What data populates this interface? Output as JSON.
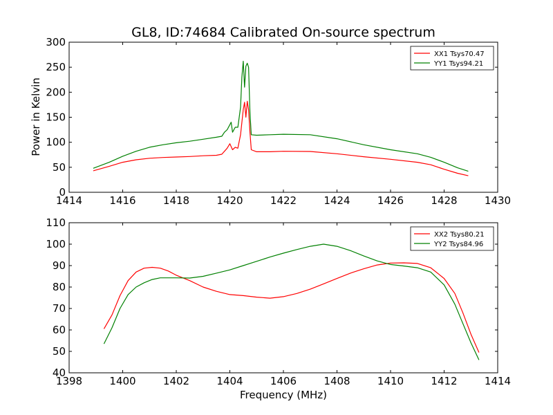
{
  "figure": {
    "title": "GL8, ID:74684 Calibrated On-source spectrum",
    "xlabel": "Frequency (MHz)",
    "ylabel": "Power in Kelvin"
  },
  "chart_data": [
    {
      "type": "line",
      "title": "GL8, ID:74684 Calibrated On-source spectrum",
      "xlabel": "",
      "ylabel": "Power in Kelvin",
      "xlim": [
        1414,
        1430
      ],
      "ylim": [
        0,
        300
      ],
      "xticks": [
        "1414",
        "1416",
        "1418",
        "1420",
        "1422",
        "1424",
        "1426",
        "1428",
        "1430"
      ],
      "yticks": [
        "0",
        "50",
        "100",
        "150",
        "200",
        "250",
        "300"
      ],
      "grid": false,
      "legend_position": "top-right",
      "series": [
        {
          "name": "XX1 Tsys70.47",
          "color": "#ff0000",
          "points": [
            [
              1414.9,
              43
            ],
            [
              1415.5,
              52
            ],
            [
              1416,
              60
            ],
            [
              1416.5,
              65
            ],
            [
              1417,
              68
            ],
            [
              1417.5,
              69.5
            ],
            [
              1418,
              70.5
            ],
            [
              1418.5,
              71.5
            ],
            [
              1419,
              73
            ],
            [
              1419.5,
              74
            ],
            [
              1419.7,
              76
            ],
            [
              1419.9,
              88
            ],
            [
              1420.0,
              97
            ],
            [
              1420.1,
              85
            ],
            [
              1420.2,
              90
            ],
            [
              1420.3,
              88
            ],
            [
              1420.4,
              115
            ],
            [
              1420.5,
              165
            ],
            [
              1420.55,
              180
            ],
            [
              1420.6,
              150
            ],
            [
              1420.65,
              182
            ],
            [
              1420.7,
              165
            ],
            [
              1420.75,
              120
            ],
            [
              1420.8,
              85
            ],
            [
              1421,
              81
            ],
            [
              1421.5,
              81
            ],
            [
              1422,
              82
            ],
            [
              1423,
              81.5
            ],
            [
              1424,
              77
            ],
            [
              1425,
              71
            ],
            [
              1426,
              66
            ],
            [
              1427,
              60
            ],
            [
              1427.5,
              55
            ],
            [
              1428,
              46
            ],
            [
              1428.5,
              38
            ],
            [
              1428.9,
              33
            ]
          ]
        },
        {
          "name": "YY1 Tsys94.21",
          "color": "#008000",
          "points": [
            [
              1414.9,
              48
            ],
            [
              1415.5,
              60
            ],
            [
              1416,
              72
            ],
            [
              1416.5,
              82
            ],
            [
              1417,
              90
            ],
            [
              1417.5,
              95
            ],
            [
              1418,
              99
            ],
            [
              1418.5,
              102
            ],
            [
              1419,
              106
            ],
            [
              1419.5,
              110
            ],
            [
              1419.7,
              112
            ],
            [
              1419.8,
              120
            ],
            [
              1419.9,
              125
            ],
            [
              1420.0,
              135
            ],
            [
              1420.05,
              140
            ],
            [
              1420.1,
              120
            ],
            [
              1420.2,
              130
            ],
            [
              1420.3,
              130
            ],
            [
              1420.4,
              170
            ],
            [
              1420.45,
              230
            ],
            [
              1420.5,
              262
            ],
            [
              1420.55,
              210
            ],
            [
              1420.6,
              252
            ],
            [
              1420.65,
              258
            ],
            [
              1420.7,
              250
            ],
            [
              1420.75,
              160
            ],
            [
              1420.8,
              115
            ],
            [
              1421,
              114
            ],
            [
              1421.5,
              115
            ],
            [
              1422,
              116
            ],
            [
              1423,
              115
            ],
            [
              1424,
              107
            ],
            [
              1425,
              95
            ],
            [
              1426,
              85
            ],
            [
              1427,
              77
            ],
            [
              1427.5,
              70
            ],
            [
              1428,
              60
            ],
            [
              1428.5,
              49
            ],
            [
              1428.9,
              42
            ]
          ]
        }
      ]
    },
    {
      "type": "line",
      "title": "",
      "xlabel": "Frequency (MHz)",
      "ylabel": "",
      "xlim": [
        1398,
        1414
      ],
      "ylim": [
        40,
        110
      ],
      "xticks": [
        "1398",
        "1400",
        "1402",
        "1404",
        "1406",
        "1408",
        "1410",
        "1412",
        "1414"
      ],
      "yticks": [
        "40",
        "50",
        "60",
        "70",
        "80",
        "90",
        "100",
        "110"
      ],
      "grid": false,
      "legend_position": "top-right",
      "series": [
        {
          "name": "XX2 Tsys80.21",
          "color": "#ff0000",
          "points": [
            [
              1399.3,
              60.5
            ],
            [
              1399.6,
              67
            ],
            [
              1399.9,
              76
            ],
            [
              1400.2,
              83
            ],
            [
              1400.5,
              87
            ],
            [
              1400.8,
              88.8
            ],
            [
              1401.1,
              89.2
            ],
            [
              1401.4,
              88.8
            ],
            [
              1401.7,
              87.5
            ],
            [
              1402,
              85.5
            ],
            [
              1402.5,
              83
            ],
            [
              1403,
              80
            ],
            [
              1403.5,
              78
            ],
            [
              1404,
              76.5
            ],
            [
              1404.5,
              76
            ],
            [
              1405,
              75.3
            ],
            [
              1405.5,
              74.8
            ],
            [
              1406,
              75.5
            ],
            [
              1406.5,
              77
            ],
            [
              1407,
              79
            ],
            [
              1407.5,
              81.5
            ],
            [
              1408,
              84
            ],
            [
              1408.5,
              86.5
            ],
            [
              1409,
              88.5
            ],
            [
              1409.5,
              90.3
            ],
            [
              1410,
              91.2
            ],
            [
              1410.5,
              91.3
            ],
            [
              1411,
              91
            ],
            [
              1411.5,
              89
            ],
            [
              1412,
              84
            ],
            [
              1412.4,
              77
            ],
            [
              1412.7,
              68
            ],
            [
              1413,
              58
            ],
            [
              1413.3,
              49.5
            ]
          ]
        },
        {
          "name": "YY2 Tsys84.96",
          "color": "#008000",
          "points": [
            [
              1399.3,
              53.5
            ],
            [
              1399.6,
              61
            ],
            [
              1399.9,
              70
            ],
            [
              1400.2,
              76.5
            ],
            [
              1400.5,
              80
            ],
            [
              1400.8,
              82
            ],
            [
              1401.1,
              83.5
            ],
            [
              1401.4,
              84.3
            ],
            [
              1401.7,
              84.3
            ],
            [
              1402,
              84.3
            ],
            [
              1402.5,
              84.2
            ],
            [
              1403,
              85
            ],
            [
              1403.5,
              86.5
            ],
            [
              1404,
              88
            ],
            [
              1404.5,
              90
            ],
            [
              1405,
              92
            ],
            [
              1405.5,
              94
            ],
            [
              1406,
              95.8
            ],
            [
              1406.5,
              97.5
            ],
            [
              1407,
              99
            ],
            [
              1407.5,
              100
            ],
            [
              1408,
              99
            ],
            [
              1408.5,
              97
            ],
            [
              1409,
              94.5
            ],
            [
              1409.5,
              92.2
            ],
            [
              1410,
              90.5
            ],
            [
              1410.5,
              89.8
            ],
            [
              1411,
              89
            ],
            [
              1411.5,
              87
            ],
            [
              1412,
              81
            ],
            [
              1412.4,
              72
            ],
            [
              1412.7,
              63
            ],
            [
              1413,
              54
            ],
            [
              1413.3,
              46
            ]
          ]
        }
      ]
    }
  ]
}
